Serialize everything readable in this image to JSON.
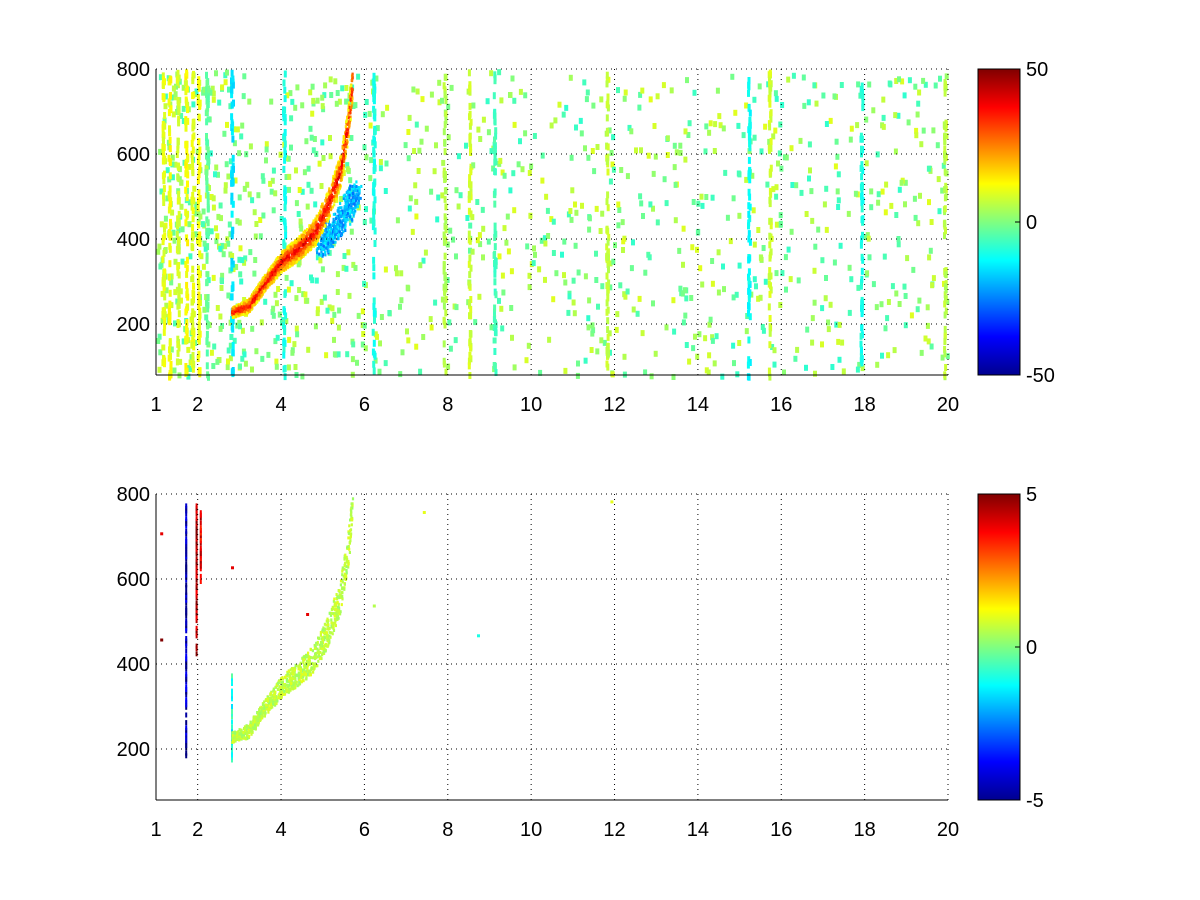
{
  "chart_data": [
    {
      "type": "heatmap",
      "title": "",
      "xlabel": "",
      "ylabel": "",
      "xlim": [
        1,
        20
      ],
      "ylim": [
        80,
        800
      ],
      "xticks": [
        "1",
        "2",
        "4",
        "6",
        "8",
        "10",
        "12",
        "14",
        "16",
        "18",
        "20"
      ],
      "xtick_values": [
        1,
        2,
        4,
        6,
        8,
        10,
        12,
        14,
        16,
        18,
        20
      ],
      "yticks": [
        "200",
        "400",
        "600",
        "800"
      ],
      "ytick_values": [
        200,
        400,
        600,
        800
      ],
      "grid": true,
      "colormap": "jet",
      "colorbar": {
        "min": -50,
        "max": 50,
        "labels": [
          "50",
          "0",
          "-50"
        ],
        "label_values": [
          50,
          0,
          -50
        ]
      },
      "features": {
        "ridge": [
          [
            2.8,
            230
          ],
          [
            3.2,
            245
          ],
          [
            3.6,
            300
          ],
          [
            4.0,
            350
          ],
          [
            4.4,
            380
          ],
          [
            4.8,
            420
          ],
          [
            5.1,
            480
          ],
          [
            5.4,
            560
          ],
          [
            5.6,
            680
          ],
          [
            5.7,
            780
          ]
        ],
        "ridge_value": 25,
        "ridge_core_value": 35,
        "negative_band": [
          [
            4.9,
            380
          ],
          [
            5.2,
            420
          ],
          [
            5.5,
            460
          ],
          [
            5.8,
            520
          ]
        ],
        "negative_value": -20,
        "columns": [
          {
            "x": 1.15,
            "value": 10
          },
          {
            "x": 1.3,
            "value": 12
          },
          {
            "x": 1.5,
            "value": 8
          },
          {
            "x": 1.7,
            "value": 12
          },
          {
            "x": 1.85,
            "value": 10
          },
          {
            "x": 2.0,
            "value": 12
          },
          {
            "x": 2.2,
            "value": -3
          },
          {
            "x": 2.8,
            "value": -15
          },
          {
            "x": 4.05,
            "value": -10
          },
          {
            "x": 6.2,
            "value": -10
          },
          {
            "x": 7.9,
            "value": 5
          },
          {
            "x": 8.5,
            "value": 8
          },
          {
            "x": 9.1,
            "value": -6
          },
          {
            "x": 11.8,
            "value": 7
          },
          {
            "x": 15.2,
            "value": -12
          },
          {
            "x": 15.7,
            "value": 8
          },
          {
            "x": 17.9,
            "value": -10
          },
          {
            "x": 19.9,
            "value": 6
          }
        ],
        "speckle_value_range": [
          -8,
          10
        ]
      }
    },
    {
      "type": "heatmap",
      "title": "",
      "xlabel": "",
      "ylabel": "",
      "xlim": [
        1,
        20
      ],
      "ylim": [
        80,
        800
      ],
      "xticks": [
        "1",
        "2",
        "4",
        "6",
        "8",
        "10",
        "12",
        "14",
        "16",
        "18",
        "20"
      ],
      "xtick_values": [
        1,
        2,
        4,
        6,
        8,
        10,
        12,
        14,
        16,
        18,
        20
      ],
      "yticks": [
        "200",
        "400",
        "600",
        "800"
      ],
      "ytick_values": [
        200,
        400,
        600,
        800
      ],
      "grid": true,
      "colormap": "jet",
      "colorbar": {
        "min": -5,
        "max": 5,
        "labels": [
          "5",
          "0",
          "-5"
        ],
        "label_values": [
          5,
          0,
          -5
        ]
      },
      "features": {
        "ridge": [
          [
            2.8,
            230
          ],
          [
            3.2,
            245
          ],
          [
            3.6,
            300
          ],
          [
            4.0,
            350
          ],
          [
            4.4,
            380
          ],
          [
            4.8,
            420
          ],
          [
            5.1,
            480
          ],
          [
            5.4,
            560
          ],
          [
            5.6,
            680
          ],
          [
            5.7,
            780
          ]
        ],
        "ridge_value": 0.6,
        "lines": [
          {
            "x": 1.7,
            "y0": 190,
            "y1": 780,
            "value": -4.5
          },
          {
            "x": 1.95,
            "y0": 430,
            "y1": 780,
            "value": 4.5
          },
          {
            "x": 2.05,
            "y0": 600,
            "y1": 770,
            "value": 4
          },
          {
            "x": 2.8,
            "y0": 180,
            "y1": 380,
            "value": -1
          }
        ],
        "points": [
          {
            "x": 1.1,
            "y": 710,
            "value": 4
          },
          {
            "x": 1.1,
            "y": 460,
            "value": 5
          },
          {
            "x": 2.8,
            "y": 630,
            "value": 4
          },
          {
            "x": 4.6,
            "y": 520,
            "value": 4
          },
          {
            "x": 8.7,
            "y": 470,
            "value": -1
          },
          {
            "x": 7.4,
            "y": 760,
            "value": 1
          },
          {
            "x": 6.2,
            "y": 540,
            "value": 0.5
          },
          {
            "x": 11.9,
            "y": 785,
            "value": 1
          }
        ]
      }
    }
  ]
}
